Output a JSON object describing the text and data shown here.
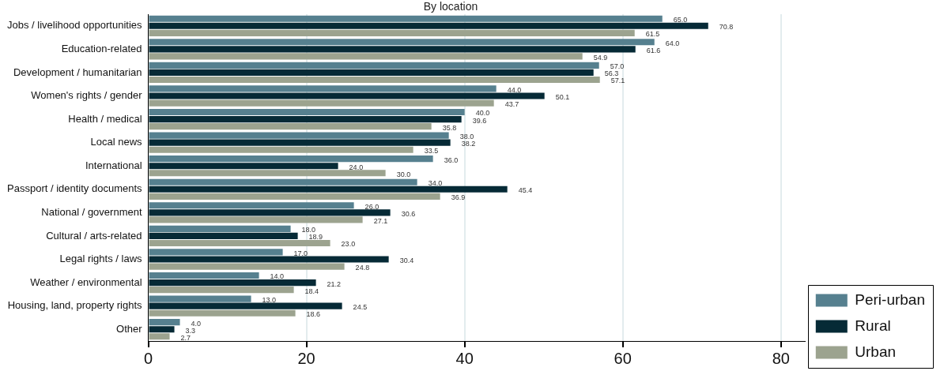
{
  "chart_data": {
    "type": "bar",
    "orientation": "horizontal",
    "title": "By location",
    "categories": [
      "Jobs / livelihood opportunities",
      "Education-related",
      "Development / humanitarian",
      "Women's rights / gender",
      "Health / medical",
      "Local news",
      "International",
      "Passport / identity documents",
      "National / government",
      "Cultural / arts-related",
      "Legal rights / laws",
      "Weather / environmental",
      "Housing, land, property rights",
      "Other"
    ],
    "series": [
      {
        "name": "Peri-urban",
        "color": "#56808f",
        "values": [
          65.0,
          64.0,
          57.0,
          44.0,
          40.0,
          38.0,
          36.0,
          34.0,
          26.0,
          18.0,
          17.0,
          14.0,
          13.0,
          4.0
        ],
        "value_labels": [
          "65.0",
          "64.0",
          "57.0",
          "44.0",
          "40.0",
          "38.0",
          "36.0",
          "34.0",
          "26.0",
          "18.0",
          "17.0",
          "14.0",
          "13.0",
          "4.0"
        ]
      },
      {
        "name": "Rural",
        "color": "#062a36",
        "values": [
          70.8,
          61.6,
          56.3,
          50.1,
          39.6,
          38.2,
          24.0,
          45.4,
          30.6,
          18.9,
          30.4,
          21.2,
          24.5,
          3.3
        ],
        "value_labels": [
          "70.8",
          "61.6",
          "56.3",
          "50.1",
          "39.6",
          "38.2",
          "24.0",
          "45.4",
          "30.6",
          "18.9",
          "30.4",
          "21.2",
          "24.5",
          "3.3"
        ]
      },
      {
        "name": "Urban",
        "color": "#9ca38f",
        "values": [
          61.5,
          54.9,
          57.1,
          43.7,
          35.8,
          33.5,
          30.0,
          36.9,
          27.1,
          23.0,
          24.8,
          18.4,
          18.6,
          2.7
        ],
        "value_labels": [
          "61.5",
          "54.9",
          "57.1",
          "43.7",
          "35.8",
          "33.5",
          "30.0",
          "36.9",
          "27.1",
          "23.0",
          "24.8",
          "18.4",
          "18.6",
          "2.7"
        ]
      }
    ],
    "xlim": [
      0,
      83
    ],
    "xticks": [
      0,
      20,
      40,
      60,
      80
    ],
    "grid": "x",
    "legend": "bottom right"
  }
}
